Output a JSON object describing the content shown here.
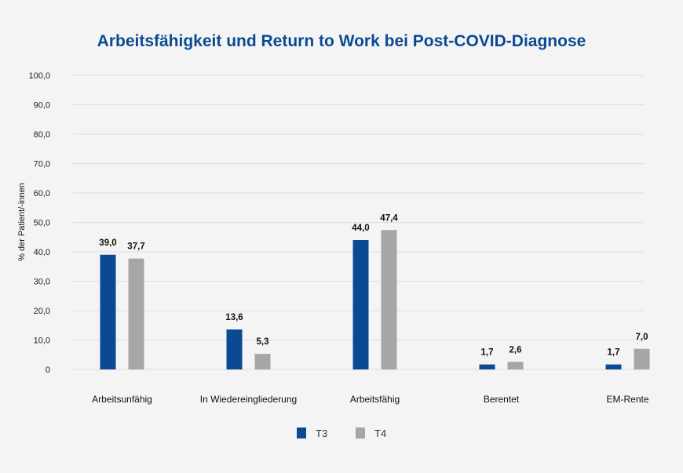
{
  "chart_data": {
    "type": "bar",
    "title": "Arbeitsfähigkeit und Return to Work bei Post-COVID-Diagnose",
    "xlabel": "",
    "ylabel": "% der Patient/-innen",
    "ylim": [
      0,
      100
    ],
    "yticks": [
      "0",
      "10,0",
      "20,0",
      "30,0",
      "40,0",
      "50,0",
      "60,0",
      "70,0",
      "80,0",
      "90,0",
      "100,0"
    ],
    "categories": [
      "Arbeitsunfähig",
      "In Wiedereingliederung",
      "Arbeitsfähig",
      "Berentet",
      "EM-Rente"
    ],
    "series": [
      {
        "name": "T3",
        "color": "#0b4a93",
        "values": [
          39.0,
          13.6,
          44.0,
          1.7,
          1.7
        ],
        "labels": [
          "39,0",
          "13,6",
          "44,0",
          "1,7",
          "1,7"
        ]
      },
      {
        "name": "T4",
        "color": "#a6a6a6",
        "values": [
          37.7,
          5.3,
          47.4,
          2.6,
          7.0
        ],
        "labels": [
          "37,7",
          "5,3",
          "47,4",
          "2,6",
          "7,0"
        ]
      }
    ],
    "grid": true,
    "legend": "bottom-center"
  }
}
